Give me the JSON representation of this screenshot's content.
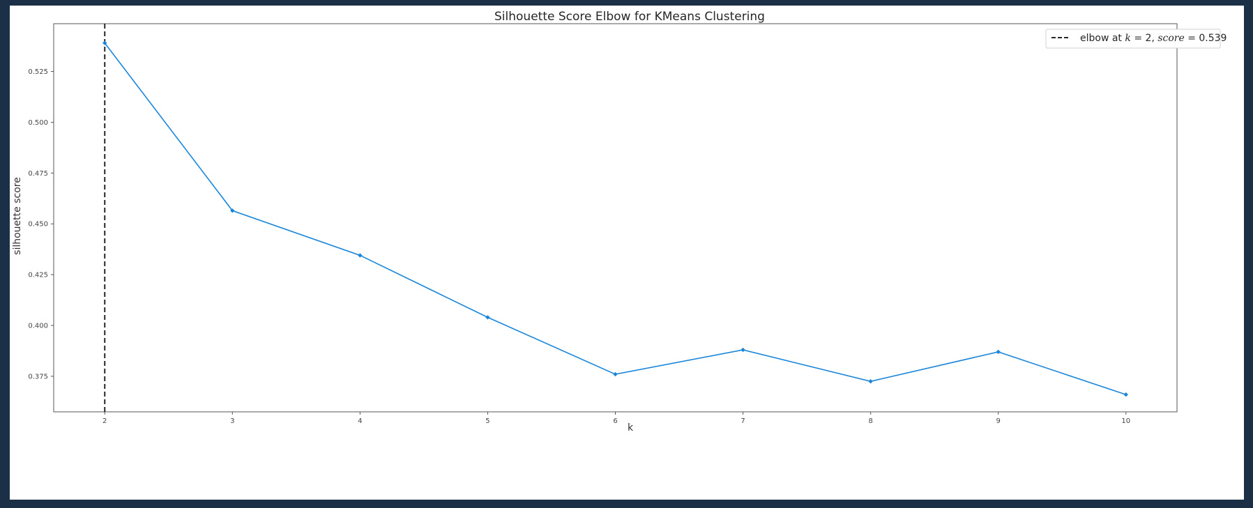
{
  "chart_data": {
    "type": "line",
    "title": "Silhouette Score Elbow for KMeans Clustering",
    "xlabel": "k",
    "ylabel": "silhouette score",
    "x": [
      2,
      3,
      4,
      5,
      6,
      7,
      8,
      9,
      10
    ],
    "xlim": [
      1.6,
      10.4
    ],
    "ylim": [
      0.3575,
      0.5485
    ],
    "x_ticks": [
      "2",
      "3",
      "4",
      "5",
      "6",
      "7",
      "8",
      "9",
      "10"
    ],
    "y_ticks": [
      "0.375",
      "0.400",
      "0.425",
      "0.450",
      "0.475",
      "0.500",
      "0.525"
    ],
    "y_tick_values": [
      0.375,
      0.4,
      0.425,
      0.45,
      0.475,
      0.5,
      0.525
    ],
    "series": [
      {
        "values": [
          0.539,
          0.4565,
          0.4345,
          0.404,
          0.376,
          0.388,
          0.3725,
          0.387,
          0.366
        ],
        "color": "#1a86d9"
      }
    ],
    "elbow": {
      "k": 2,
      "score": 0.539,
      "color": "#262626",
      "style": "dashed"
    },
    "legend": {
      "position": "top-right",
      "prefix": "elbow at ",
      "k_var": "k",
      "eq1": " = 2, ",
      "score_var": "score",
      "eq2": " = 0.539"
    },
    "grid": false
  }
}
